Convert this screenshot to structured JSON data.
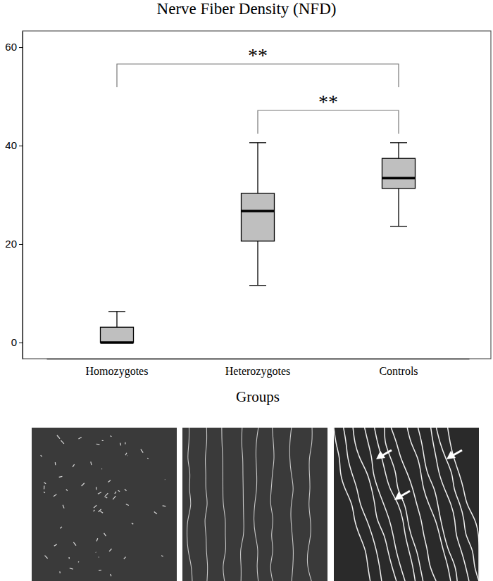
{
  "chart_data": {
    "type": "box",
    "title": "Nerve Fiber Density (NFD)",
    "x_label": "Groups",
    "categories": [
      "Homozygotes",
      "Heterozygotes",
      "Controls"
    ],
    "min": [
      0,
      11.6,
      23.6
    ],
    "q1": [
      0,
      20.6,
      31.3
    ],
    "median": [
      0,
      26.7,
      33.4
    ],
    "q3": [
      3.1,
      30.3,
      37.4
    ],
    "max": [
      6.3,
      40.6,
      40.6
    ],
    "color": "#bfbfbf",
    "ylim": [
      -3.3,
      63.3
    ],
    "yticks": [
      0,
      20,
      40,
      60
    ],
    "grid": false,
    "comparisons": [
      {
        "groups": [
          "Homozygotes",
          "Controls"
        ],
        "label": "**"
      },
      {
        "groups": [
          "Heterozygotes",
          "Controls"
        ],
        "label": "**"
      }
    ]
  }
}
